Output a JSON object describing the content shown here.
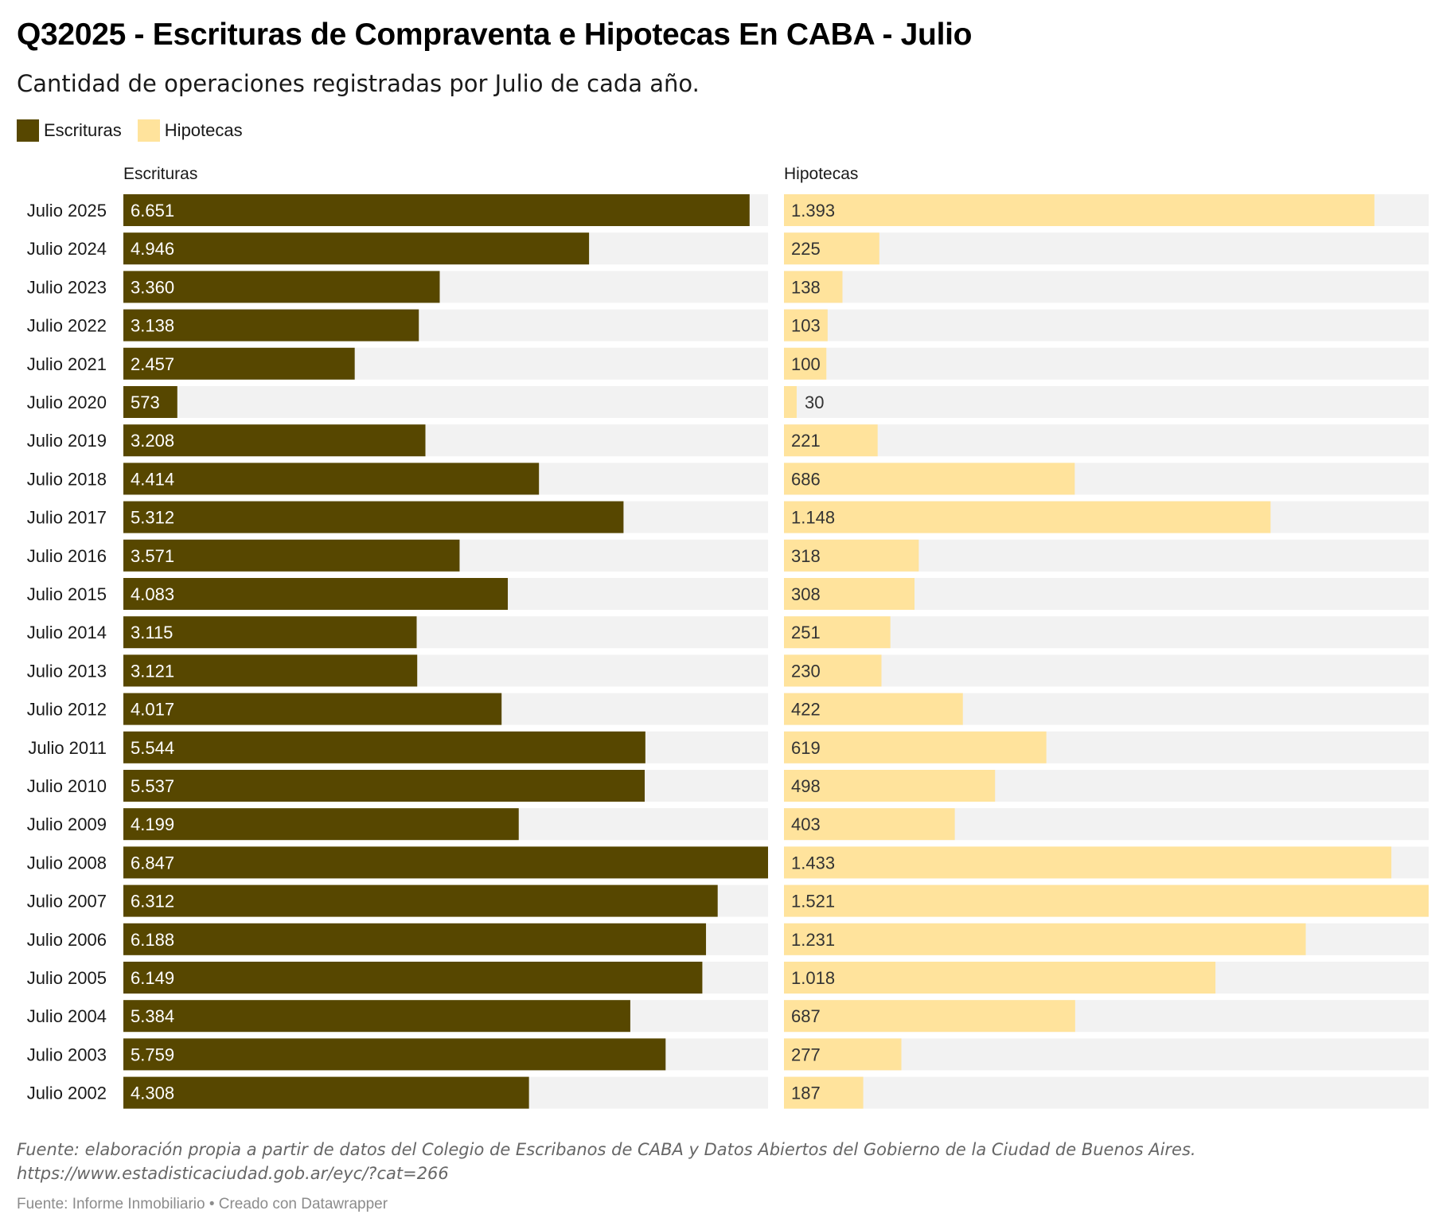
{
  "header": {
    "title": "Q32025 - Escrituras de Compraventa e Hipotecas En CABA - Julio",
    "subtitle": "Cantidad de operaciones registradas por Julio de cada año."
  },
  "legend": [
    {
      "label": "Escrituras",
      "color": "#574700"
    },
    {
      "label": "Hipotecas",
      "color": "#ffe39c"
    }
  ],
  "colors": {
    "escrituras": "#574700",
    "hipotecas": "#ffe39c",
    "track": "#f2f2f2",
    "label_on_dark": "#ffffff",
    "label_on_light": "#333333"
  },
  "chart_data": {
    "type": "bar",
    "orientation": "horizontal",
    "title": "Q32025 - Escrituras de Compraventa e Hipotecas En CABA - Julio",
    "subtitle": "Cantidad de operaciones registradas por Julio de cada año.",
    "categories": [
      "Julio 2025",
      "Julio 2024",
      "Julio 2023",
      "Julio 2022",
      "Julio 2021",
      "Julio 2020",
      "Julio 2019",
      "Julio 2018",
      "Julio 2017",
      "Julio 2016",
      "Julio 2015",
      "Julio 2014",
      "Julio 2013",
      "Julio 2012",
      "Julio 2011",
      "Julio 2010",
      "Julio 2009",
      "Julio 2008",
      "Julio 2007",
      "Julio 2006",
      "Julio 2005",
      "Julio 2004",
      "Julio 2003",
      "Julio 2002"
    ],
    "series": [
      {
        "name": "Escrituras",
        "values": [
          6651,
          4946,
          3360,
          3138,
          2457,
          573,
          3208,
          4414,
          5312,
          3571,
          4083,
          3115,
          3121,
          4017,
          5544,
          5537,
          4199,
          6847,
          6312,
          6188,
          6149,
          5384,
          5759,
          4308
        ],
        "labels": [
          "6.651",
          "4.946",
          "3.360",
          "3.138",
          "2.457",
          "573",
          "3.208",
          "4.414",
          "5.312",
          "3.571",
          "4.083",
          "3.115",
          "3.121",
          "4.017",
          "5.544",
          "5.537",
          "4.199",
          "6.847",
          "6.312",
          "6.188",
          "6.149",
          "5.384",
          "5.759",
          "4.308"
        ],
        "xlim": [
          0,
          6847
        ]
      },
      {
        "name": "Hipotecas",
        "values": [
          1393,
          225,
          138,
          103,
          100,
          30,
          221,
          686,
          1148,
          318,
          308,
          251,
          230,
          422,
          619,
          498,
          403,
          1433,
          1521,
          1231,
          1018,
          687,
          277,
          187
        ],
        "labels": [
          "1.393",
          "225",
          "138",
          "103",
          "100",
          "30",
          "221",
          "686",
          "1.148",
          "318",
          "308",
          "251",
          "230",
          "422",
          "619",
          "498",
          "403",
          "1.433",
          "1.521",
          "1.231",
          "1.018",
          "687",
          "277",
          "187"
        ],
        "xlim": [
          0,
          1521
        ]
      }
    ],
    "xlabel": "",
    "ylabel": "",
    "grid": false,
    "legend_position": "top-left"
  },
  "footer": {
    "note_line1": "Fuente: elaboración propia a partir de datos del Colegio de Escribanos de CABA y Datos Abiertos del Gobierno de la Ciudad de Buenos Aires.",
    "note_line2": "https://www.estadisticaciudad.gob.ar/eyc/?cat=266",
    "byline": "Fuente: Informe Inmobiliario • Creado con Datawrapper"
  }
}
